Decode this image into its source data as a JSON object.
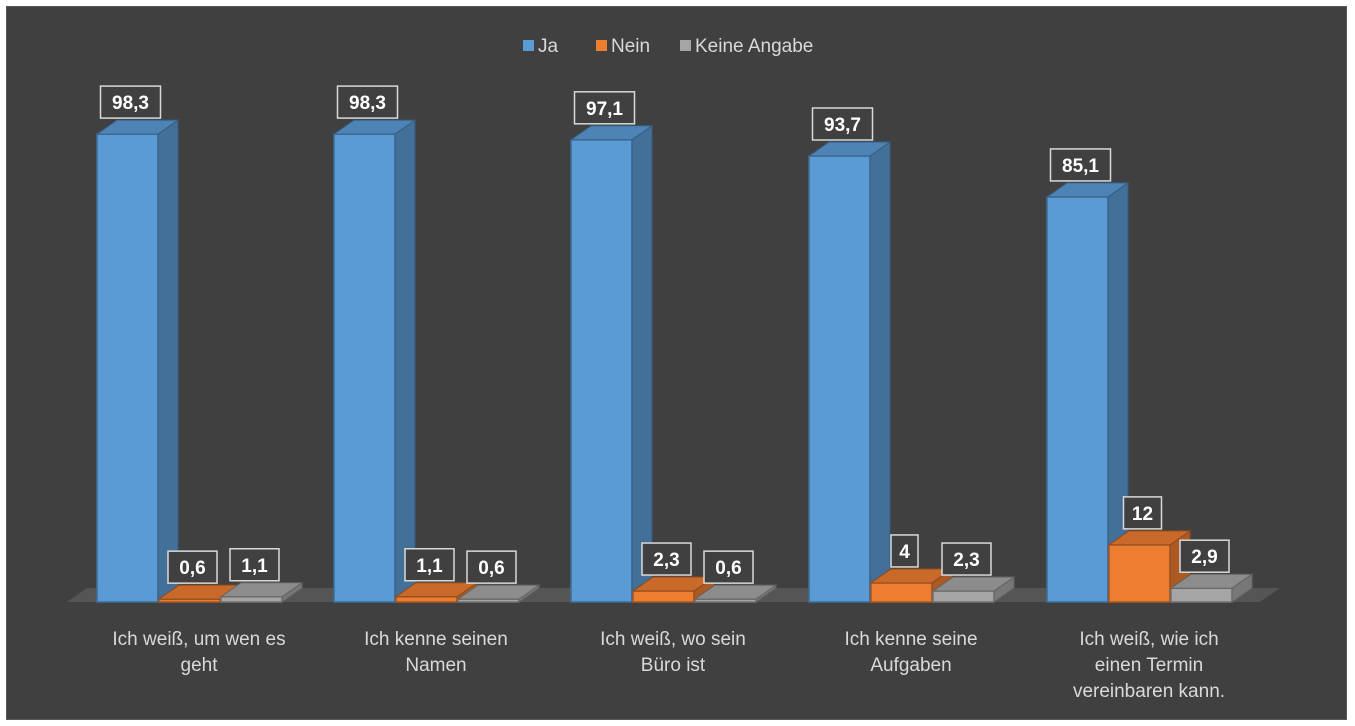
{
  "chart_data": {
    "type": "bar",
    "categories": [
      [
        "Ich weiß, um wen es",
        "geht"
      ],
      [
        "Ich kenne seinen",
        "Namen"
      ],
      [
        "Ich weiß, wo sein",
        "Büro ist"
      ],
      [
        "Ich kenne seine",
        "Aufgaben"
      ],
      [
        "Ich weiß, wie ich",
        "einen Termin",
        "vereinbaren kann."
      ]
    ],
    "series": [
      {
        "name": "Ja",
        "color": "#5b9bd5",
        "values": [
          98.3,
          98.3,
          97.1,
          93.7,
          85.1
        ],
        "labels": [
          "98,3",
          "98,3",
          "97,1",
          "93,7",
          "85,1"
        ]
      },
      {
        "name": "Nein",
        "color": "#ed7d31",
        "values": [
          0.6,
          1.1,
          2.3,
          4,
          12
        ],
        "labels": [
          "0,6",
          "1,1",
          "2,3",
          "4",
          "12"
        ]
      },
      {
        "name": "Keine Angabe",
        "color": "#a5a5a5",
        "values": [
          1.1,
          0.6,
          0.6,
          2.3,
          2.9
        ],
        "labels": [
          "1,1",
          "0,6",
          "0,6",
          "2,3",
          "2,9"
        ]
      }
    ],
    "ylim": [
      0,
      100
    ],
    "grid": false,
    "legend_position": "top",
    "style": "3d-column"
  }
}
